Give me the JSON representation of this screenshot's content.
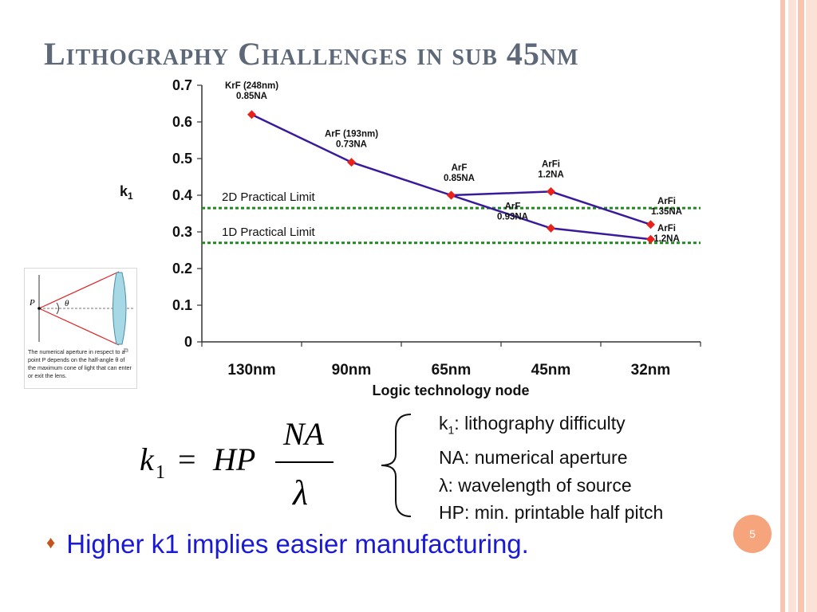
{
  "slide": {
    "title": "Lithography Challenges in sub 45nm",
    "page_number": "5",
    "colors": {
      "title": "#5d6878",
      "bullet_text": "#1a1ad6",
      "accent": "#f6a47c",
      "series_line": "#3a1a9a",
      "marker": "#e8221a",
      "limit_line": "#1e8a1e"
    }
  },
  "chart_data": {
    "type": "line",
    "xlabel": "Logic technology node",
    "ylabel": "k",
    "ylabel_sub": "1",
    "categories": [
      "130nm",
      "90nm",
      "65nm",
      "45nm",
      "32nm"
    ],
    "ylim": [
      0,
      0.7
    ],
    "yticks": [
      "0",
      "0.1",
      "0.2",
      "0.3",
      "0.4",
      "0.5",
      "0.6",
      "0.7"
    ],
    "series": [
      {
        "values": [
          0.62,
          0.49,
          0.4,
          0.31,
          0.28
        ]
      },
      {
        "values": [
          null,
          null,
          0.4,
          0.41,
          0.32
        ]
      }
    ],
    "point_labels": [
      {
        "cat": 0,
        "y": 0.62,
        "lines": [
          "KrF (248nm)",
          "0.85NA"
        ]
      },
      {
        "cat": 1,
        "y": 0.49,
        "lines": [
          "ArF (193nm)",
          "0.73NA"
        ]
      },
      {
        "cat": 2,
        "y": 0.4,
        "lines": [
          "ArF",
          "0.85NA"
        ]
      },
      {
        "cat": 3,
        "y": 0.41,
        "lines": [
          "ArFi",
          "1.2NA"
        ]
      },
      {
        "cat": 3,
        "y": 0.31,
        "lines": [
          "ArF",
          "0.93NA"
        ]
      },
      {
        "cat": 4,
        "y": 0.32,
        "lines": [
          "ArFi",
          "1.35NA"
        ]
      },
      {
        "cat": 4,
        "y": 0.28,
        "lines": [
          "ArFi",
          "1.2NA"
        ]
      }
    ],
    "limits": [
      {
        "label": "2D Practical Limit",
        "y": 0.365
      },
      {
        "label": "1D Practical Limit",
        "y": 0.27
      }
    ],
    "grid": false
  },
  "inset": {
    "point_label": "P",
    "angle_label": "θ",
    "caption": "The numerical aperture in respect to a point P depends on the half-angle θ of the maximum cone of light that can enter or exit the lens.",
    "magnify_icon": "magnify-icon"
  },
  "formula": {
    "lhs": "k",
    "lhs_sub": "1",
    "equals": "=",
    "rhs_prefix": "HP",
    "numerator": "NA",
    "denominator": "λ"
  },
  "legend": [
    {
      "term": "k",
      "sub": "1",
      "desc": ": lithography difficulty"
    },
    {
      "term": "NA",
      "sub": "",
      "desc": ": numerical aperture"
    },
    {
      "term": "λ",
      "sub": "",
      "desc": ": wavelength of source"
    },
    {
      "term": "HP",
      "sub": "",
      "desc": ": min. printable half pitch"
    }
  ],
  "bullet": {
    "icon": "diamond-bullet-icon",
    "glyph": "♦",
    "text": "Higher k1 implies easier manufacturing."
  }
}
